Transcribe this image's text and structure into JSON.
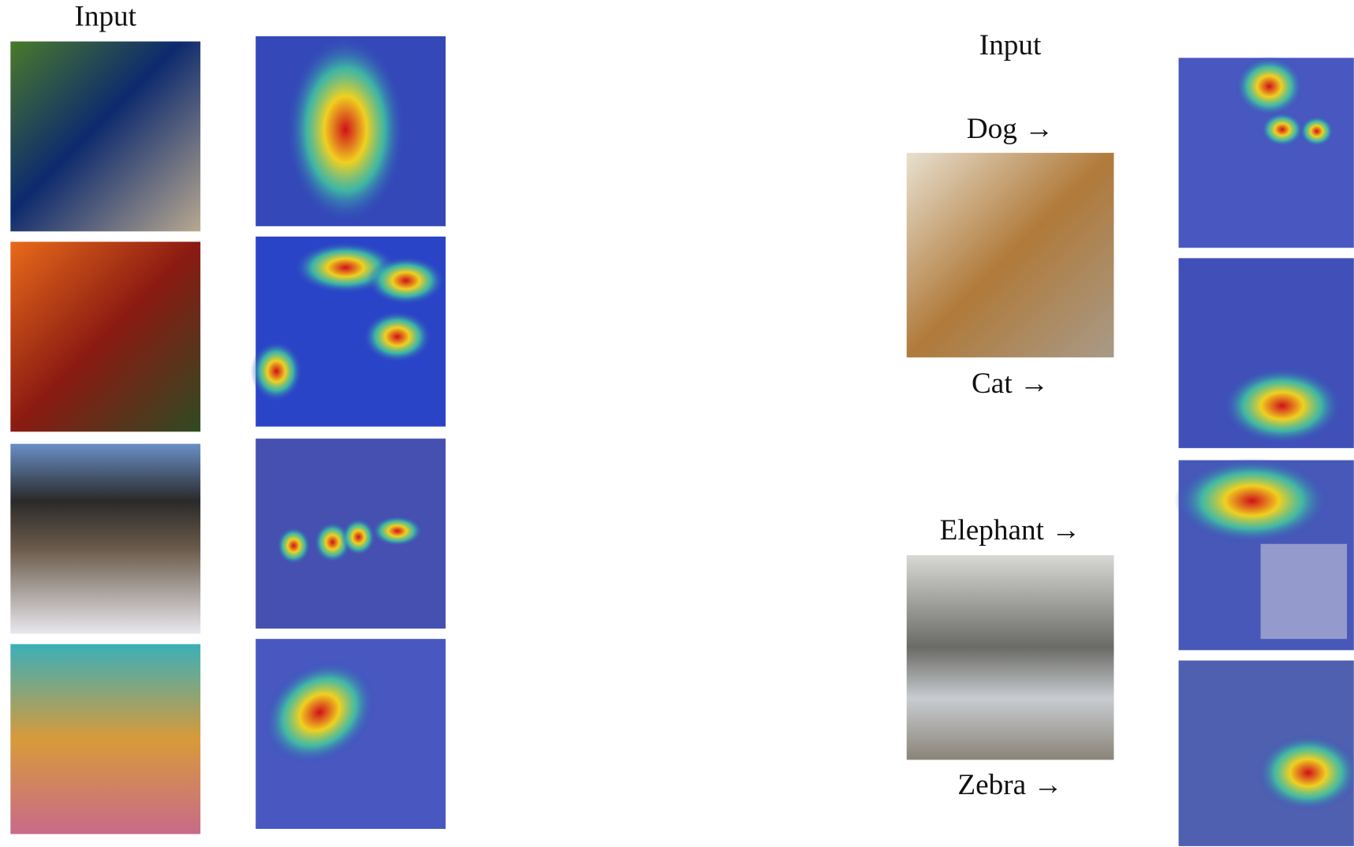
{
  "left_panel": {
    "header": "Input"
  },
  "right_panel": {
    "header": "Input",
    "labels": [
      "Dog →",
      "Cat →",
      "Elephant →",
      "Zebra →"
    ]
  }
}
